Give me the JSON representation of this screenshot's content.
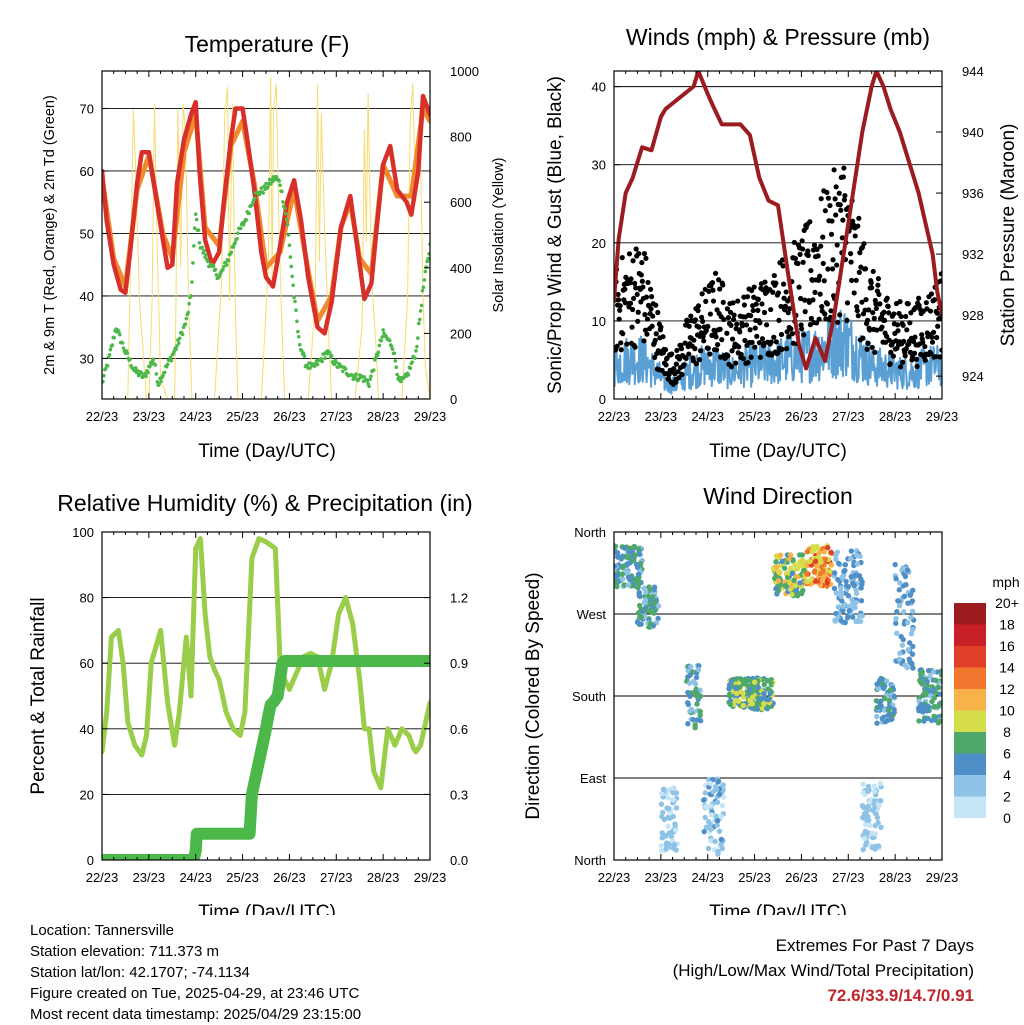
{
  "colors": {
    "temp_red": "#d7302b",
    "temp_orange": "#f08a2c",
    "dewpoint_green": "#4cb84a",
    "solar_yellow": "#f7dc6f",
    "wind_black": "#000000",
    "wind_blue": "#5a9fd4",
    "pressure_maroon": "#9b1b1f",
    "rh_lightgreen": "#9acd4a",
    "precip_green": "#4cb84a",
    "extremes_red": "#c0262c"
  },
  "x_ticks": [
    "22/23",
    "23/23",
    "24/23",
    "25/23",
    "26/23",
    "27/23",
    "28/23",
    "29/23"
  ],
  "chart_data": [
    {
      "id": "temperature",
      "type": "line",
      "title": "Temperature (F)",
      "xlabel": "Time (Day/UTC)",
      "ylabel": "2m & 9m T (Red, Orange) & 2m Td (Green)",
      "y2label": "Solar Insolation (Yellow)",
      "xlim": [
        0,
        7
      ],
      "ylim": [
        23.5,
        76
      ],
      "y_ticks": [
        30,
        40,
        50,
        60,
        70
      ],
      "y2lim": [
        0,
        1000
      ],
      "y2_ticks": [
        0,
        200,
        400,
        600,
        800,
        1000
      ],
      "grid": true,
      "series": [
        {
          "key": "t2m",
          "axis": "left",
          "color": "#d7302b",
          "x": [
            0,
            0.1,
            0.25,
            0.4,
            0.5,
            0.6,
            0.75,
            0.85,
            1.0,
            1.15,
            1.3,
            1.4,
            1.5,
            1.6,
            1.75,
            1.9,
            2.0,
            2.08,
            2.2,
            2.35,
            2.5,
            2.6,
            2.75,
            2.85,
            3.0,
            3.1,
            3.25,
            3.4,
            3.5,
            3.65,
            3.8,
            3.95,
            4.1,
            4.25,
            4.4,
            4.6,
            4.75,
            4.9,
            5.0,
            5.1,
            5.3,
            5.5,
            5.6,
            5.75,
            5.85,
            6.0,
            6.15,
            6.3,
            6.5,
            6.6,
            6.75,
            6.85,
            7.0
          ],
          "y": [
            60,
            52,
            45,
            41,
            40.5,
            47,
            58,
            63,
            63,
            56,
            49,
            44.5,
            45,
            58,
            65,
            69,
            71,
            60,
            49,
            45,
            47,
            55,
            65,
            70,
            70,
            65,
            57,
            47,
            43,
            41.5,
            48,
            55,
            58.5,
            52,
            43,
            35,
            34,
            39,
            45,
            51,
            56,
            45,
            39.5,
            42,
            50,
            61,
            64,
            57,
            55,
            53,
            60,
            72,
            69
          ]
        },
        {
          "key": "t9m",
          "axis": "left",
          "color": "#f08a2c",
          "x": [
            0,
            0.25,
            0.5,
            0.75,
            1.0,
            1.3,
            1.5,
            1.75,
            2.0,
            2.2,
            2.5,
            2.75,
            3.0,
            3.25,
            3.5,
            3.8,
            4.1,
            4.4,
            4.6,
            4.9,
            5.1,
            5.3,
            5.5,
            5.75,
            6.0,
            6.3,
            6.6,
            6.85,
            7.0
          ],
          "y": [
            59,
            46,
            41.5,
            57,
            62.5,
            50,
            46,
            63,
            69,
            51,
            48,
            64,
            68,
            58,
            44.5,
            47,
            57,
            44,
            36,
            40,
            51,
            55,
            46,
            43.5,
            61,
            56,
            56,
            70,
            68
          ]
        },
        {
          "key": "td2m",
          "axis": "left",
          "color": "#4cb84a",
          "x": [
            0,
            0.15,
            0.3,
            0.5,
            0.7,
            0.9,
            1.1,
            1.2,
            1.4,
            1.6,
            1.8,
            1.9,
            2.0,
            2.1,
            2.3,
            2.5,
            2.7,
            2.9,
            3.05,
            3.25,
            3.45,
            3.7,
            3.8,
            3.95,
            4.1,
            4.2,
            4.35,
            4.5,
            4.7,
            4.8,
            5.0,
            5.2,
            5.4,
            5.55,
            5.7,
            5.85,
            6.0,
            6.2,
            6.35,
            6.5,
            6.7,
            6.85,
            7.0
          ],
          "y": [
            26,
            30,
            35,
            31,
            28,
            27,
            30,
            26,
            29,
            32,
            36,
            40,
            53,
            48,
            45,
            43,
            46,
            50,
            52,
            56,
            57,
            59,
            58,
            52,
            40,
            33,
            29,
            28.5,
            30,
            31,
            29,
            28,
            27,
            27,
            26,
            30,
            34,
            32,
            26,
            27,
            31,
            41,
            48
          ]
        },
        {
          "key": "solar",
          "axis": "right",
          "color": "#f7dc6f",
          "x": [
            0,
            0.55,
            0.62,
            0.67,
            0.72,
            0.8,
            0.95,
            1.0,
            1.07,
            1.12,
            1.18,
            1.25,
            1.4,
            1.55,
            1.58,
            1.62,
            1.68,
            1.73,
            1.78,
            1.85,
            1.92,
            2.4,
            2.55,
            2.62,
            2.68,
            2.72,
            2.78,
            2.85,
            2.9,
            3.4,
            3.55,
            3.6,
            3.63,
            3.66,
            3.72,
            3.78,
            3.85,
            3.9,
            4.4,
            4.55,
            4.6,
            4.64,
            4.68,
            4.75,
            4.85,
            4.9,
            5.4,
            5.55,
            5.6,
            5.64,
            5.68,
            5.75,
            5.85,
            5.9,
            6.4,
            6.52,
            6.58,
            6.63,
            6.7,
            6.78,
            6.85,
            6.9,
            7.0
          ],
          "y": [
            0,
            0,
            500,
            880,
            700,
            300,
            0,
            0,
            300,
            900,
            450,
            60,
            0,
            0,
            300,
            880,
            400,
            900,
            820,
            280,
            0,
            0,
            350,
            870,
            950,
            300,
            900,
            250,
            0,
            0,
            400,
            980,
            350,
            880,
            960,
            500,
            180,
            0,
            0,
            300,
            960,
            420,
            870,
            520,
            150,
            0,
            0,
            220,
            820,
            480,
            930,
            380,
            150,
            0,
            0,
            300,
            850,
            960,
            600,
            880,
            320,
            100,
            0
          ]
        }
      ]
    },
    {
      "id": "winds",
      "type": "scatter",
      "title": "Winds (mph) & Pressure (mb)",
      "xlabel": "Time (Day/UTC)",
      "ylabel": "Sonic/Prop Wind & Gust (Blue, Black)",
      "y2label": "Station Pressure (Maroon)",
      "xlim": [
        0,
        7
      ],
      "ylim": [
        0,
        42
      ],
      "y_ticks": [
        0,
        10,
        20,
        30,
        40
      ],
      "y2lim": [
        922.5,
        944
      ],
      "y2_ticks": [
        924,
        928,
        932,
        936,
        940,
        944
      ],
      "grid": true,
      "gust_envelope": {
        "x": [
          0,
          0.3,
          0.6,
          0.9,
          1.1,
          1.3,
          1.6,
          1.9,
          2.2,
          2.5,
          2.8,
          3.1,
          3.4,
          3.7,
          4.0,
          4.3,
          4.6,
          4.9,
          5.2,
          5.5,
          5.8,
          6.1,
          6.4,
          6.7,
          7.0
        ],
        "y": [
          12,
          14,
          15,
          9,
          5,
          4,
          8,
          10,
          12,
          9,
          10,
          11,
          12,
          14,
          15,
          18,
          20,
          23,
          17,
          12,
          10,
          9,
          9,
          10,
          12
        ]
      },
      "wind_envelope": {
        "x": [
          0,
          0.3,
          0.6,
          0.9,
          1.1,
          1.3,
          1.6,
          1.9,
          2.2,
          2.5,
          2.8,
          3.1,
          3.4,
          3.7,
          4.0,
          4.3,
          4.6,
          4.9,
          5.2,
          5.5,
          5.8,
          6.1,
          6.4,
          6.7,
          7.0
        ],
        "y": [
          5,
          6,
          6,
          4,
          2.5,
          2,
          4,
          5,
          5,
          4,
          5,
          5,
          5.5,
          6,
          6.5,
          7,
          8,
          9,
          7,
          5,
          4.5,
          4,
          4,
          5,
          5
        ]
      },
      "series": [
        {
          "key": "pressure",
          "axis": "right",
          "color": "#9b1b1f",
          "x": [
            0,
            0.1,
            0.25,
            0.4,
            0.6,
            0.8,
            1.0,
            1.1,
            1.3,
            1.5,
            1.7,
            1.8,
            2.0,
            2.1,
            2.3,
            2.5,
            2.7,
            2.9,
            3.1,
            3.3,
            3.5,
            3.7,
            3.85,
            3.95,
            4.1,
            4.3,
            4.5,
            4.7,
            4.9,
            5.1,
            5.3,
            5.5,
            5.6,
            5.75,
            5.9,
            6.1,
            6.3,
            6.5,
            6.65,
            6.8,
            6.9,
            7.0
          ],
          "y": [
            929,
            933,
            936,
            937,
            939,
            938.8,
            941,
            941.5,
            942,
            942.5,
            943,
            944,
            942.5,
            941.8,
            940.5,
            940.5,
            940.5,
            939.8,
            937,
            935.5,
            935.2,
            931,
            928,
            926,
            924.5,
            926.5,
            925,
            928,
            932,
            936,
            940,
            943,
            944,
            943,
            941.5,
            940,
            938,
            936,
            934,
            932,
            929.5,
            928
          ]
        }
      ]
    },
    {
      "id": "humidity",
      "type": "line",
      "title": "Relative Humidity (%) & Precipitation (in)",
      "xlabel": "Time (Day/UTC)",
      "ylabel": "Percent & Total Rainfall",
      "xlim": [
        0,
        7
      ],
      "ylim": [
        0,
        100
      ],
      "y_ticks": [
        0,
        20,
        40,
        60,
        80,
        100
      ],
      "y2lim": [
        0,
        1.5
      ],
      "y2_ticks": [
        0.0,
        0.3,
        0.6,
        0.9,
        1.2
      ],
      "y2_tick_labels": [
        "0.0",
        "0.3",
        "0.6",
        "0.9",
        "1.2"
      ],
      "grid": true,
      "series": [
        {
          "key": "rh",
          "axis": "left",
          "color": "#9acd4a",
          "x": [
            0,
            0.1,
            0.2,
            0.35,
            0.45,
            0.55,
            0.7,
            0.85,
            0.95,
            1.05,
            1.25,
            1.4,
            1.55,
            1.65,
            1.8,
            1.9,
            2.0,
            2.1,
            2.2,
            2.3,
            2.4,
            2.5,
            2.65,
            2.8,
            2.95,
            3.05,
            3.2,
            3.35,
            3.5,
            3.7,
            3.8,
            3.9,
            4.0,
            4.15,
            4.3,
            4.45,
            4.6,
            4.75,
            4.9,
            5.05,
            5.2,
            5.35,
            5.5,
            5.6,
            5.7,
            5.8,
            5.95,
            6.1,
            6.25,
            6.4,
            6.55,
            6.65,
            6.7,
            6.8,
            7.0
          ],
          "y": [
            33,
            45,
            68,
            70,
            60,
            42,
            35,
            32,
            38,
            60,
            70,
            48,
            35,
            45,
            68,
            50,
            95,
            98,
            75,
            62,
            58,
            55,
            45,
            40,
            38,
            45,
            92,
            98,
            97,
            95,
            60,
            55,
            52,
            57,
            62,
            63,
            62,
            52,
            60,
            75,
            80,
            72,
            55,
            40,
            40,
            27,
            22,
            40,
            35,
            40,
            38,
            34,
            33,
            35,
            48
          ]
        },
        {
          "key": "precip",
          "axis": "right",
          "color": "#4cb84a",
          "x": [
            0,
            1.95,
            2.0,
            2.02,
            3.15,
            3.2,
            3.3,
            3.4,
            3.5,
            3.55,
            3.6,
            3.65,
            3.75,
            3.85,
            3.9,
            4.0,
            7.0
          ],
          "y": [
            0,
            0,
            0.04,
            0.12,
            0.12,
            0.3,
            0.4,
            0.5,
            0.6,
            0.66,
            0.71,
            0.72,
            0.75,
            0.9,
            0.91,
            0.91,
            0.91
          ]
        }
      ]
    },
    {
      "id": "wind_direction",
      "type": "scatter",
      "title": "Wind Direction",
      "xlabel": "Time (Day/UTC)",
      "ylabel": "Direction (Colored By Speed)",
      "xlim": [
        0,
        7
      ],
      "ylim": [
        0,
        360
      ],
      "y_ticks": [
        0,
        90,
        180,
        270,
        360
      ],
      "y_tick_labels": [
        "North",
        "East",
        "South",
        "West",
        "North"
      ],
      "grid": true,
      "clusters": [
        {
          "x": [
            0,
            0.6
          ],
          "dir": [
            300,
            345
          ],
          "speed": [
            3,
            8
          ]
        },
        {
          "x": [
            0.5,
            0.95
          ],
          "dir": [
            255,
            300
          ],
          "speed": [
            3,
            8
          ]
        },
        {
          "x": [
            1.0,
            1.35
          ],
          "dir": [
            10,
            80
          ],
          "speed": [
            1,
            4
          ]
        },
        {
          "x": [
            1.55,
            1.85
          ],
          "dir": [
            145,
            215
          ],
          "speed": [
            2,
            7
          ]
        },
        {
          "x": [
            1.9,
            2.35
          ],
          "dir": [
            5,
            90
          ],
          "speed": [
            1,
            5
          ]
        },
        {
          "x": [
            2.45,
            3.4
          ],
          "dir": [
            165,
            200
          ],
          "speed": [
            5,
            9
          ]
        },
        {
          "x": [
            3.4,
            4.1
          ],
          "dir": [
            290,
            335
          ],
          "speed": [
            5,
            11
          ]
        },
        {
          "x": [
            4.1,
            4.65
          ],
          "dir": [
            300,
            345
          ],
          "speed": [
            8,
            15
          ]
        },
        {
          "x": [
            4.7,
            5.3
          ],
          "dir": [
            260,
            340
          ],
          "speed": [
            2,
            6
          ]
        },
        {
          "x": [
            5.3,
            5.7
          ],
          "dir": [
            10,
            85
          ],
          "speed": [
            1,
            4
          ]
        },
        {
          "x": [
            5.6,
            6.0
          ],
          "dir": [
            150,
            200
          ],
          "speed": [
            3,
            7
          ]
        },
        {
          "x": [
            6.0,
            6.4
          ],
          "dir": [
            210,
            330
          ],
          "speed": [
            2,
            6
          ]
        },
        {
          "x": [
            6.5,
            7.0
          ],
          "dir": [
            150,
            210
          ],
          "speed": [
            3,
            8
          ]
        }
      ],
      "scale": {
        "unit": "mph",
        "labels": [
          "0",
          "2",
          "4",
          "6",
          "8",
          "10",
          "12",
          "14",
          "16",
          "18",
          "20+"
        ],
        "colors": [
          "#c6e6f7",
          "#8ec2e6",
          "#4f8fc7",
          "#4ea86a",
          "#d6dd4c",
          "#f7b24a",
          "#f2762e",
          "#e0402a",
          "#c92028",
          "#9e1b20"
        ]
      }
    }
  ],
  "info": {
    "location": "Location: Tannersville",
    "elevation": "Station elevation: 711.373 m",
    "latlon": "Station lat/lon: 42.1707; -74.1134",
    "created": "Figure created on Tue, 2025-04-29, at 23:46 UTC",
    "recent": "Most recent data timestamp: 2025/04/29 23:15:00"
  },
  "extremes": {
    "title": "Extremes For Past 7 Days",
    "subtitle": "(High/Low/Max Wind/Total Precipitation)",
    "values": "72.6/33.9/14.7/0.91"
  }
}
